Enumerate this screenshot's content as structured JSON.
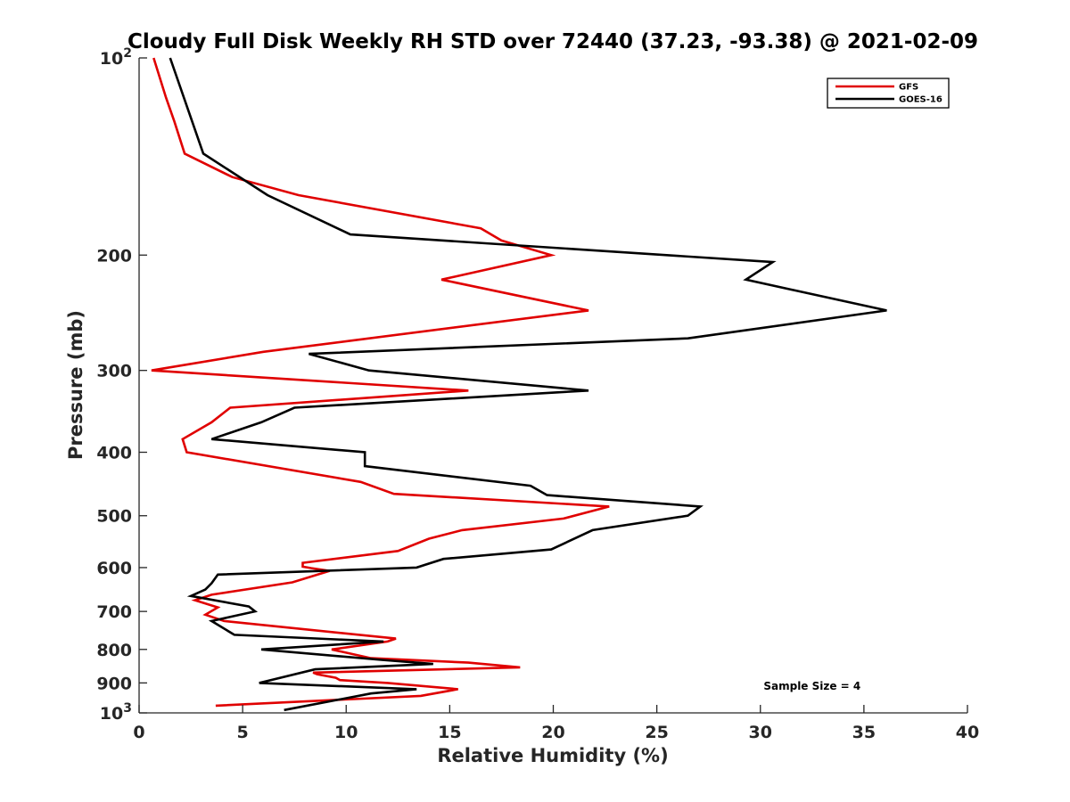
{
  "chart_data": {
    "type": "line",
    "title": "Cloudy Full Disk Weekly RH STD over 72440 (37.23, -93.38) @ 2021-02-09",
    "xlabel": "Relative Humidity (%)",
    "ylabel": "Pressure (mb)",
    "xlim": [
      0,
      40
    ],
    "ylim": [
      100,
      1000
    ],
    "yscale": "log",
    "y_reversed": true,
    "x_ticks": [
      "0",
      "5",
      "10",
      "15",
      "20",
      "25",
      "30",
      "35",
      "40"
    ],
    "y_ticks": [
      {
        "value": 100,
        "base": "10",
        "exp": "2"
      },
      {
        "value": 200,
        "label": "200"
      },
      {
        "value": 300,
        "label": "300"
      },
      {
        "value": 400,
        "label": "400"
      },
      {
        "value": 500,
        "label": "500"
      },
      {
        "value": 600,
        "label": "600"
      },
      {
        "value": 700,
        "label": "700"
      },
      {
        "value": 800,
        "label": "800"
      },
      {
        "value": 900,
        "label": "900"
      },
      {
        "value": 1000,
        "base": "10",
        "exp": "3"
      }
    ],
    "grid": false,
    "legend_position": "top-right",
    "series": [
      {
        "name": "GFS",
        "color": "#e00000",
        "points": [
          [
            0.7,
            100
          ],
          [
            1.3,
            115
          ],
          [
            1.7,
            125
          ],
          [
            2.2,
            140
          ],
          [
            4.5,
            152
          ],
          [
            7.7,
            162
          ],
          [
            16.5,
            182
          ],
          [
            17.5,
            190
          ],
          [
            19.9,
            200
          ],
          [
            14.6,
            218
          ],
          [
            21.7,
            243
          ],
          [
            6.0,
            281
          ],
          [
            0.6,
            300
          ],
          [
            15.9,
            322
          ],
          [
            4.4,
            342
          ],
          [
            3.5,
            360
          ],
          [
            2.1,
            382
          ],
          [
            2.3,
            400
          ],
          [
            10.7,
            444
          ],
          [
            12.3,
            463
          ],
          [
            22.7,
            484
          ],
          [
            20.5,
            505
          ],
          [
            15.6,
            526
          ],
          [
            14.0,
            542
          ],
          [
            12.5,
            566
          ],
          [
            7.9,
            590
          ],
          [
            7.9,
            598
          ],
          [
            8.3,
            601
          ],
          [
            9.2,
            607
          ],
          [
            7.4,
            632
          ],
          [
            3.5,
            660
          ],
          [
            2.7,
            673
          ],
          [
            3.8,
            690
          ],
          [
            3.2,
            708
          ],
          [
            4.1,
            724
          ],
          [
            12.4,
            770
          ],
          [
            12.0,
            778
          ],
          [
            9.3,
            800
          ],
          [
            11.2,
            825
          ],
          [
            15.9,
            838
          ],
          [
            18.4,
            852
          ],
          [
            8.4,
            868
          ],
          [
            8.6,
            873
          ],
          [
            9.5,
            884
          ],
          [
            9.7,
            891
          ],
          [
            12.0,
            900
          ],
          [
            15.4,
            920
          ],
          [
            13.6,
            942
          ],
          [
            3.7,
            975
          ]
        ]
      },
      {
        "name": "GOES-16",
        "color": "#000000",
        "points": [
          [
            1.5,
            100
          ],
          [
            3.1,
            140
          ],
          [
            6.2,
            162
          ],
          [
            10.2,
            186
          ],
          [
            30.6,
            205
          ],
          [
            29.3,
            218
          ],
          [
            36.1,
            243
          ],
          [
            26.5,
            268
          ],
          [
            8.2,
            283
          ],
          [
            11.1,
            300
          ],
          [
            21.7,
            322
          ],
          [
            7.5,
            342
          ],
          [
            5.9,
            360
          ],
          [
            3.5,
            382
          ],
          [
            10.9,
            400
          ],
          [
            10.9,
            420
          ],
          [
            18.9,
            450
          ],
          [
            19.7,
            465
          ],
          [
            27.1,
            484
          ],
          [
            26.5,
            500
          ],
          [
            21.9,
            526
          ],
          [
            19.9,
            563
          ],
          [
            14.7,
            582
          ],
          [
            13.4,
            600
          ],
          [
            3.8,
            615
          ],
          [
            3.5,
            634
          ],
          [
            3.2,
            648
          ],
          [
            2.5,
            663
          ],
          [
            5.3,
            688
          ],
          [
            5.6,
            700
          ],
          [
            3.5,
            724
          ],
          [
            4.6,
            760
          ],
          [
            11.8,
            778
          ],
          [
            5.9,
            800
          ],
          [
            11.7,
            830
          ],
          [
            14.2,
            842
          ],
          [
            8.5,
            858
          ],
          [
            5.8,
            900
          ],
          [
            13.4,
            920
          ],
          [
            11.2,
            934
          ],
          [
            7.0,
            990
          ]
        ]
      }
    ],
    "annotations": [
      {
        "text": "Sample Size = 4",
        "x": 32.5,
        "y": 910
      }
    ]
  }
}
